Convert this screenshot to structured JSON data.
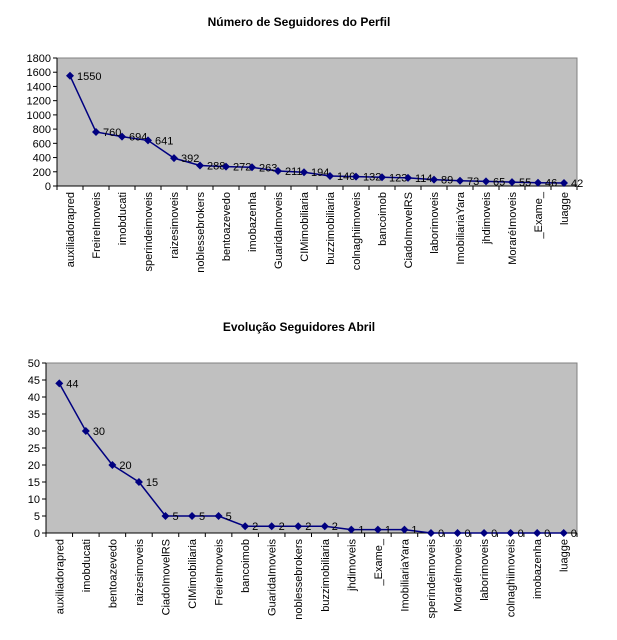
{
  "chart_data": [
    {
      "type": "line",
      "title": "Número de Seguidores do Perfil",
      "categories": [
        "auxiliadorapred",
        "FreireImoveis",
        "imobducati",
        "sperindeimoveis",
        "raizesimoveis",
        "noblessebrokers",
        "bentoazevedo",
        "imobazenha",
        "GuaridaImoveis",
        "CIMimobiliaria",
        "buzzimobiliaria",
        "colnaghiimoveis",
        "bancoimob",
        "CiadoImovelRS",
        "laborimoveis",
        "ImobiliariaYara",
        "jhdimoveis",
        "MoraréImoveis",
        "_Exame_",
        "luagge"
      ],
      "values": [
        1550,
        760,
        694,
        641,
        392,
        288,
        272,
        263,
        211,
        194,
        140,
        132,
        123,
        114,
        89,
        73,
        65,
        55,
        46,
        42
      ],
      "ylim": [
        0,
        1800
      ],
      "yticks": [
        0,
        200,
        400,
        600,
        800,
        1000,
        1200,
        1400,
        1600,
        1800
      ],
      "grid": false,
      "legend": "none",
      "colors": {
        "plot_bg": "#c0c0c0",
        "line": "#000080",
        "marker": "#000080"
      }
    },
    {
      "type": "line",
      "title": "Evolução Seguidores Abril",
      "categories": [
        "auxiliadorapred",
        "imobducati",
        "bentoazevedo",
        "raizesimoveis",
        "CiadoImovelRS",
        "CIMimobiliaria",
        "FreireImoveis",
        "bancoimob",
        "GuaridaImoveis",
        "noblessebrokers",
        "buzzimobiliaria",
        "jhdimoveis",
        "_Exame_",
        "ImobiliariaYara",
        "sperindeimoveis",
        "MoraréImoveis",
        "laborimoveis",
        "colnaghiimoveis",
        "imobazenha",
        "luagge"
      ],
      "values": [
        44,
        30,
        20,
        15,
        5,
        5,
        5,
        2,
        2,
        2,
        2,
        1,
        1,
        1,
        0,
        0,
        0,
        0,
        0,
        0
      ],
      "ylim": [
        0,
        50
      ],
      "yticks": [
        0,
        5,
        10,
        15,
        20,
        25,
        30,
        35,
        40,
        45,
        50
      ],
      "grid": false,
      "legend": "none",
      "colors": {
        "plot_bg": "#c0c0c0",
        "line": "#000080",
        "marker": "#000080"
      }
    }
  ]
}
